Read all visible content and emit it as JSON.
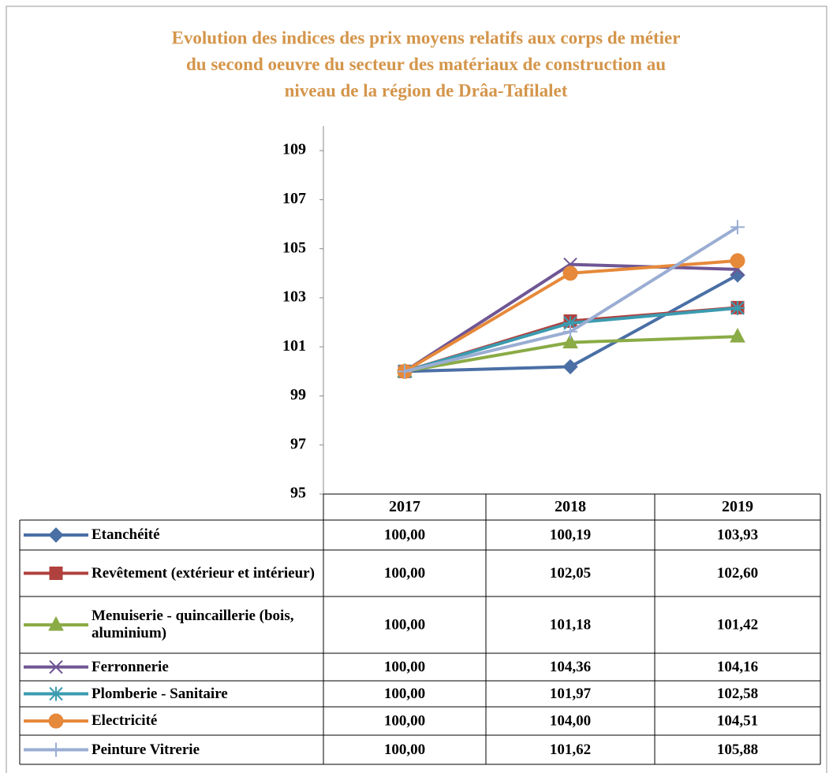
{
  "chart_data": {
    "type": "line",
    "title": [
      "Evolution des indices des prix moyens relatifs aux corps de métier",
      "du second oeuvre du secteur des matériaux de construction au",
      "niveau de la région de Drâa-Tafilalet"
    ],
    "categories": [
      "2017",
      "2018",
      "2019"
    ],
    "ylim": [
      95,
      110
    ],
    "yticks": [
      95,
      97,
      99,
      101,
      103,
      105,
      107,
      109
    ],
    "grid": false,
    "series": [
      {
        "name": "Etanchéité",
        "color": "#4a6fa5",
        "marker": "diamond",
        "values": [
          100,
          100.19,
          103.93
        ],
        "value_labels": [
          "100,00",
          "100,19",
          "103,93"
        ]
      },
      {
        "name": "Revêtement (extérieur et intérieur)",
        "color": "#b0413e",
        "marker": "square",
        "values": [
          100,
          102.05,
          102.6
        ],
        "value_labels": [
          "100,00",
          "102,05",
          "102,60"
        ]
      },
      {
        "name": "Menuiserie - quincaillerie (bois, aluminium)",
        "color": "#8aab46",
        "marker": "triangle",
        "values": [
          100,
          101.18,
          101.42
        ],
        "value_labels": [
          "100,00",
          "101,18",
          "101,42"
        ]
      },
      {
        "name": "Ferronnerie",
        "color": "#6f5694",
        "marker": "x",
        "values": [
          100,
          104.36,
          104.16
        ],
        "value_labels": [
          "100,00",
          "104,36",
          "104,16"
        ]
      },
      {
        "name": "Plomberie - Sanitaire",
        "color": "#3b9bb0",
        "marker": "star",
        "values": [
          100,
          101.97,
          102.58
        ],
        "value_labels": [
          "100,00",
          "101,97",
          "102,58"
        ]
      },
      {
        "name": "Electricité",
        "color": "#e6893a",
        "marker": "circle",
        "values": [
          100,
          104,
          104.51
        ],
        "value_labels": [
          "100,00",
          "104,00",
          "104,51"
        ]
      },
      {
        "name": "Peinture Vitrerie",
        "color": "#9aadd3",
        "marker": "plus",
        "values": [
          100,
          101.62,
          105.88
        ],
        "value_labels": [
          "100,00",
          "101,62",
          "105,88"
        ]
      }
    ]
  }
}
